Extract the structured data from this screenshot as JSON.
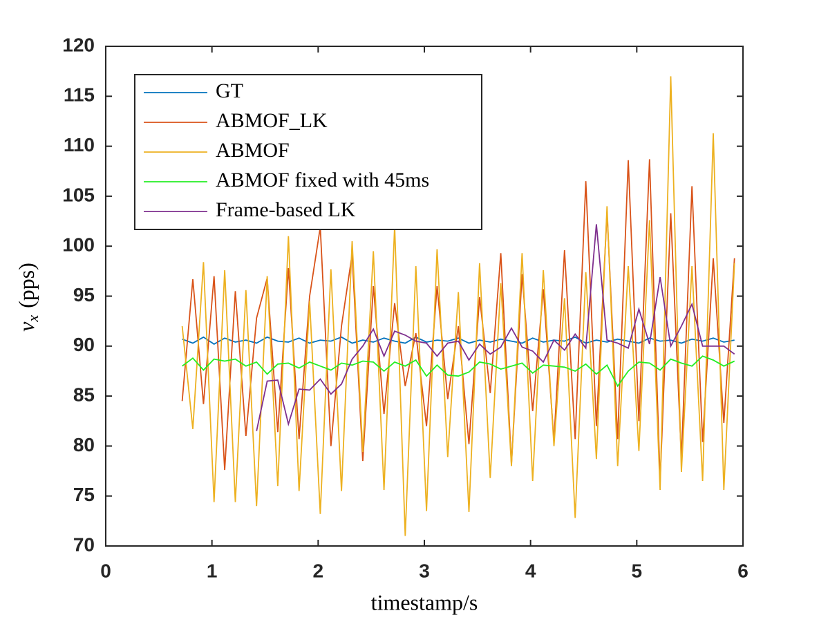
{
  "chart_data": {
    "type": "line",
    "xlabel": "timestamp/s",
    "ylabel": {
      "main": "v",
      "subscript": "x",
      "unit": "(pps)"
    },
    "xlim": [
      0,
      6
    ],
    "ylim": [
      70,
      120
    ],
    "xticks": [
      0,
      1,
      2,
      3,
      4,
      5,
      6
    ],
    "yticks": [
      70,
      75,
      80,
      85,
      90,
      95,
      100,
      105,
      110,
      115,
      120
    ],
    "grid": false,
    "legend": "upper left",
    "x": [
      0.72,
      0.82,
      0.92,
      1.02,
      1.12,
      1.22,
      1.32,
      1.42,
      1.52,
      1.62,
      1.72,
      1.82,
      1.92,
      2.02,
      2.12,
      2.22,
      2.32,
      2.42,
      2.52,
      2.62,
      2.72,
      2.82,
      2.92,
      3.02,
      3.12,
      3.22,
      3.32,
      3.42,
      3.52,
      3.62,
      3.72,
      3.82,
      3.92,
      4.02,
      4.12,
      4.22,
      4.32,
      4.42,
      4.52,
      4.62,
      4.72,
      4.82,
      4.92,
      5.02,
      5.12,
      5.22,
      5.32,
      5.42,
      5.52,
      5.62,
      5.72,
      5.82,
      5.92
    ],
    "series": [
      {
        "name": "GT",
        "color": "#0072bd",
        "values": [
          90.7,
          90.3,
          90.9,
          90.2,
          90.8,
          90.4,
          90.6,
          90.3,
          90.9,
          90.5,
          90.4,
          90.8,
          90.3,
          90.6,
          90.5,
          90.9,
          90.3,
          90.6,
          90.4,
          90.8,
          90.5,
          90.3,
          90.9,
          90.4,
          90.6,
          90.5,
          90.8,
          90.3,
          90.6,
          90.4,
          90.7,
          90.5,
          90.3,
          90.8,
          90.4,
          90.6,
          90.5,
          90.9,
          90.3,
          90.6,
          90.4,
          90.7,
          90.5,
          90.3,
          90.8,
          90.5,
          90.6,
          90.3,
          90.7,
          90.5,
          90.8,
          90.4,
          90.6
        ]
      },
      {
        "name": "ABMOF_LK",
        "color": "#d95319",
        "values": [
          84.5,
          96.7,
          84.2,
          97,
          77.6,
          95.5,
          81,
          92.8,
          96.8,
          81.4,
          97.8,
          80.7,
          95,
          101.9,
          80,
          92,
          99.2,
          78.5,
          96,
          83.2,
          94.3,
          86,
          91.3,
          82,
          96,
          84.7,
          92,
          80.2,
          94.9,
          85.3,
          99.3,
          78.2,
          97.2,
          83.5,
          95.7,
          80.5,
          99.6,
          80.7,
          106.5,
          82,
          103.4,
          80.7,
          108.6,
          82.5,
          108.7,
          76.5,
          103.3,
          78.8,
          106,
          80.4,
          98.8,
          82.3,
          98.8
        ]
      },
      {
        "name": "ABMOF",
        "color": "#edb120",
        "values": [
          92,
          81.7,
          98.4,
          74.4,
          97.6,
          74.4,
          95.6,
          74,
          97,
          76,
          101,
          75.5,
          94.5,
          73.2,
          97.7,
          75.5,
          100.5,
          79.4,
          99.5,
          75.6,
          102,
          71,
          98,
          73.5,
          99.7,
          78.9,
          95.4,
          73.4,
          98.3,
          76.8,
          96.3,
          78,
          99.3,
          76.5,
          97.6,
          80,
          94.8,
          72.8,
          97.4,
          78.7,
          104,
          78,
          98,
          79.5,
          102.6,
          75.6,
          117,
          77.4,
          98,
          76.5,
          111.3,
          75.6,
          98.3
        ]
      },
      {
        "name": "ABMOF fixed with 45ms",
        "color": "#22ee22",
        "values": [
          88,
          88.8,
          87.6,
          88.7,
          88.5,
          88.7,
          88,
          88.4,
          87.2,
          88.2,
          88.3,
          87.8,
          88.4,
          88,
          87.6,
          88.3,
          88.1,
          88.5,
          88.4,
          87.5,
          88.4,
          88,
          88.6,
          87,
          88.1,
          87.1,
          87,
          87.4,
          88.4,
          88.2,
          87.7,
          88,
          88.3,
          87.3,
          88.1,
          88,
          87.9,
          87.5,
          88.2,
          87.2,
          88.1,
          86,
          87.5,
          88.4,
          88.3,
          87.6,
          88.7,
          88.3,
          88,
          89,
          88.6,
          88,
          88.5
        ]
      },
      {
        "name": "Frame-based LK",
        "color": "#7e2f8e",
        "x": [
          1.42,
          1.52,
          1.62,
          1.72,
          1.82,
          1.92,
          2.02,
          2.12,
          2.22,
          2.32,
          2.42,
          2.52,
          2.62,
          2.72,
          2.82,
          2.92,
          3.02,
          3.12,
          3.22,
          3.32,
          3.42,
          3.52,
          3.62,
          3.72,
          3.82,
          3.92,
          4.02,
          4.12,
          4.22,
          4.32,
          4.42,
          4.52,
          4.62,
          4.72,
          4.82,
          4.92,
          5.02,
          5.12,
          5.22,
          5.32,
          5.42,
          5.52,
          5.62,
          5.72,
          5.82,
          5.92
        ],
        "values": [
          81.5,
          86.5,
          86.6,
          82.2,
          85.7,
          85.6,
          86.7,
          85.2,
          86.2,
          88.7,
          90,
          91.7,
          89,
          91.5,
          91.1,
          90.5,
          90.3,
          89,
          90.3,
          90.5,
          88.6,
          90.2,
          89.2,
          89.9,
          91.8,
          89.9,
          89.5,
          88.4,
          90.6,
          89.6,
          91.2,
          89.8,
          102.2,
          90.6,
          90.3,
          89.8,
          93.7,
          90.2,
          96.9,
          90,
          92,
          94.2,
          90,
          90,
          90,
          89.2
        ]
      }
    ]
  }
}
